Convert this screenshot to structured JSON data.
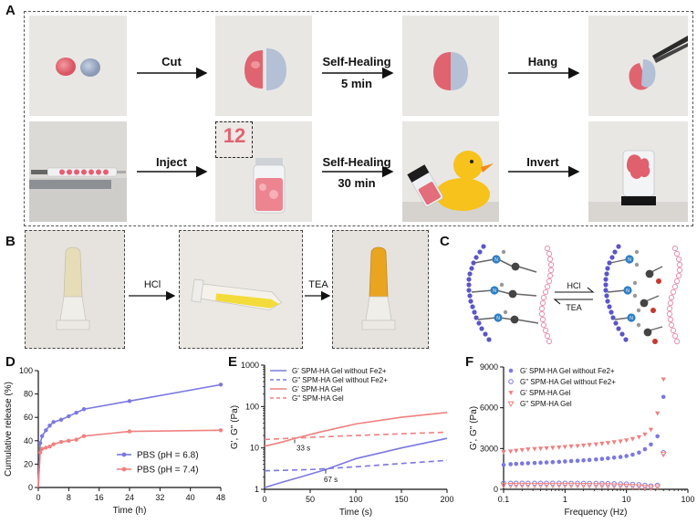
{
  "panels": {
    "A": {
      "letter": "A",
      "top_steps": [
        "Cut",
        "Self-Healing",
        "Hang"
      ],
      "top_step_time": "5 min",
      "bottom_steps": [
        "Inject",
        "Self-Healing",
        "Invert"
      ],
      "bottom_step_time": "30 min",
      "inset_text": "12"
    },
    "B": {
      "letter": "B",
      "steps": [
        "HCl",
        "TEA"
      ]
    },
    "C": {
      "letter": "C",
      "forward": "HCl",
      "reverse": "TEA",
      "atom_label": "N"
    },
    "D": {
      "letter": "D"
    },
    "E": {
      "letter": "E"
    },
    "F": {
      "letter": "F"
    }
  },
  "colors": {
    "pink_gel": "#e8707a",
    "blue_gel": "#a9b7cf",
    "purple_series": "#7b78e0",
    "red_series": "#f08080",
    "dash_frame": "#555555"
  },
  "chart_data": [
    {
      "id": "D",
      "type": "line",
      "title": "",
      "xlabel": "Time (h)",
      "ylabel": "Cumulative release (%)",
      "xlim": [
        0,
        48
      ],
      "ylim": [
        0,
        100
      ],
      "xticks": [
        0,
        8,
        16,
        24,
        32,
        40,
        48
      ],
      "yticks": [
        0,
        20,
        40,
        60,
        80,
        100
      ],
      "series": [
        {
          "name": "PBS (pH = 6.8)",
          "color": "#7b78e0",
          "x": [
            0,
            0.5,
            1,
            2,
            3,
            4,
            6,
            8,
            10,
            12,
            24,
            48
          ],
          "y": [
            0,
            38,
            44,
            49,
            53,
            56,
            58,
            61,
            64,
            67,
            74,
            88
          ]
        },
        {
          "name": "PBS (pH = 7.4)",
          "color": "#f08080",
          "x": [
            0,
            0.5,
            1,
            2,
            3,
            4,
            6,
            8,
            10,
            12,
            24,
            48
          ],
          "y": [
            0,
            30,
            33,
            34,
            35,
            37,
            39,
            40,
            41,
            44,
            48,
            49
          ]
        }
      ],
      "legend": "bottom-right"
    },
    {
      "id": "E",
      "type": "line",
      "title": "",
      "xlabel": "Time (s)",
      "ylabel": "G', G\" (Pa)",
      "xlim": [
        0,
        200
      ],
      "ylim_log": [
        1,
        1000
      ],
      "xticks": [
        0,
        50,
        100,
        150,
        200
      ],
      "yticks": [
        1,
        10,
        100,
        1000
      ],
      "ytick_labels": [
        "1",
        "10",
        "100",
        "1000"
      ],
      "series": [
        {
          "name": "G' SPM-HA Gel without Fe2+",
          "color": "#7b78e0",
          "dash": false,
          "x": [
            0,
            20,
            40,
            67,
            100,
            150,
            200
          ],
          "y": [
            1.1,
            1.5,
            2.0,
            3.0,
            5.5,
            10,
            17
          ]
        },
        {
          "name": "G\" SPM-HA Gel without Fe2+",
          "color": "#7b78e0",
          "dash": true,
          "x": [
            0,
            50,
            100,
            150,
            200
          ],
          "y": [
            2.8,
            3.0,
            3.5,
            4.2,
            5.0
          ]
        },
        {
          "name": "G' SPM-HA Gel",
          "color": "#f08080",
          "dash": false,
          "x": [
            0,
            20,
            33,
            60,
            100,
            150,
            200
          ],
          "y": [
            11,
            14,
            17,
            24,
            38,
            55,
            72
          ]
        },
        {
          "name": "G\" SPM-HA Gel",
          "color": "#f08080",
          "dash": true,
          "x": [
            0,
            50,
            100,
            150,
            200
          ],
          "y": [
            16,
            18,
            20,
            22,
            24
          ]
        }
      ],
      "annotations": [
        "33 s",
        "67 s"
      ],
      "legend": "top-left"
    },
    {
      "id": "F",
      "type": "scatter",
      "title": "",
      "xlabel": "Frequency (Hz)",
      "ylabel": "G', G\" (Pa)",
      "xlim_log": [
        0.1,
        100
      ],
      "ylim": [
        0,
        9000
      ],
      "xticks": [
        0.1,
        1,
        10,
        100
      ],
      "xtick_labels": [
        "0.1",
        "1",
        "10",
        "100"
      ],
      "yticks": [
        0,
        3000,
        6000,
        9000
      ],
      "series": [
        {
          "name": "G' SPM-HA Gel without Fe2+",
          "color": "#7b78e0",
          "marker": "circle-filled",
          "x": [
            0.1,
            0.13,
            0.16,
            0.2,
            0.25,
            0.32,
            0.4,
            0.5,
            0.63,
            0.8,
            1,
            1.26,
            1.6,
            2,
            2.5,
            3.2,
            4,
            5,
            6.3,
            8,
            10,
            12.6,
            16,
            20,
            25,
            32,
            40
          ],
          "y": [
            1800,
            1850,
            1870,
            1900,
            1920,
            1940,
            1960,
            1980,
            2000,
            2020,
            2050,
            2080,
            2100,
            2130,
            2160,
            2200,
            2240,
            2280,
            2330,
            2380,
            2450,
            2550,
            2700,
            2950,
            3300,
            3900,
            6800
          ]
        },
        {
          "name": "G\" SPM-HA Gel without Fe2+",
          "color": "#7b78e0",
          "marker": "circle-open",
          "x": [
            0.1,
            0.13,
            0.16,
            0.2,
            0.25,
            0.32,
            0.4,
            0.5,
            0.63,
            0.8,
            1,
            1.26,
            1.6,
            2,
            2.5,
            3.2,
            4,
            5,
            6.3,
            8,
            10,
            12.6,
            16,
            20,
            25,
            32,
            40
          ],
          "y": [
            450,
            450,
            450,
            450,
            450,
            450,
            450,
            450,
            450,
            450,
            450,
            440,
            440,
            440,
            430,
            430,
            420,
            420,
            410,
            400,
            390,
            370,
            340,
            300,
            250,
            300,
            2700
          ]
        },
        {
          "name": "G' SPM-HA Gel",
          "color": "#f08080",
          "marker": "triangle-filled",
          "x": [
            0.1,
            0.13,
            0.16,
            0.2,
            0.25,
            0.32,
            0.4,
            0.5,
            0.63,
            0.8,
            1,
            1.26,
            1.6,
            2,
            2.5,
            3.2,
            4,
            5,
            6.3,
            8,
            10,
            12.6,
            16,
            20,
            25,
            32,
            40
          ],
          "y": [
            2750,
            2800,
            2850,
            2900,
            2950,
            2980,
            3010,
            3040,
            3070,
            3100,
            3130,
            3170,
            3200,
            3240,
            3280,
            3320,
            3370,
            3420,
            3480,
            3540,
            3620,
            3720,
            3850,
            4050,
            4400,
            5600,
            8100
          ]
        },
        {
          "name": "G\" SPM-HA Gel",
          "color": "#f08080",
          "marker": "triangle-open",
          "x": [
            0.1,
            0.13,
            0.16,
            0.2,
            0.25,
            0.32,
            0.4,
            0.5,
            0.63,
            0.8,
            1,
            1.26,
            1.6,
            2,
            2.5,
            3.2,
            4,
            5,
            6.3,
            8,
            10,
            12.6,
            16,
            20,
            25,
            32,
            40
          ],
          "y": [
            320,
            320,
            320,
            320,
            320,
            320,
            320,
            320,
            320,
            320,
            320,
            315,
            310,
            305,
            300,
            295,
            290,
            280,
            270,
            260,
            250,
            230,
            200,
            170,
            130,
            200,
            2600
          ]
        }
      ],
      "legend": "top-left"
    }
  ]
}
